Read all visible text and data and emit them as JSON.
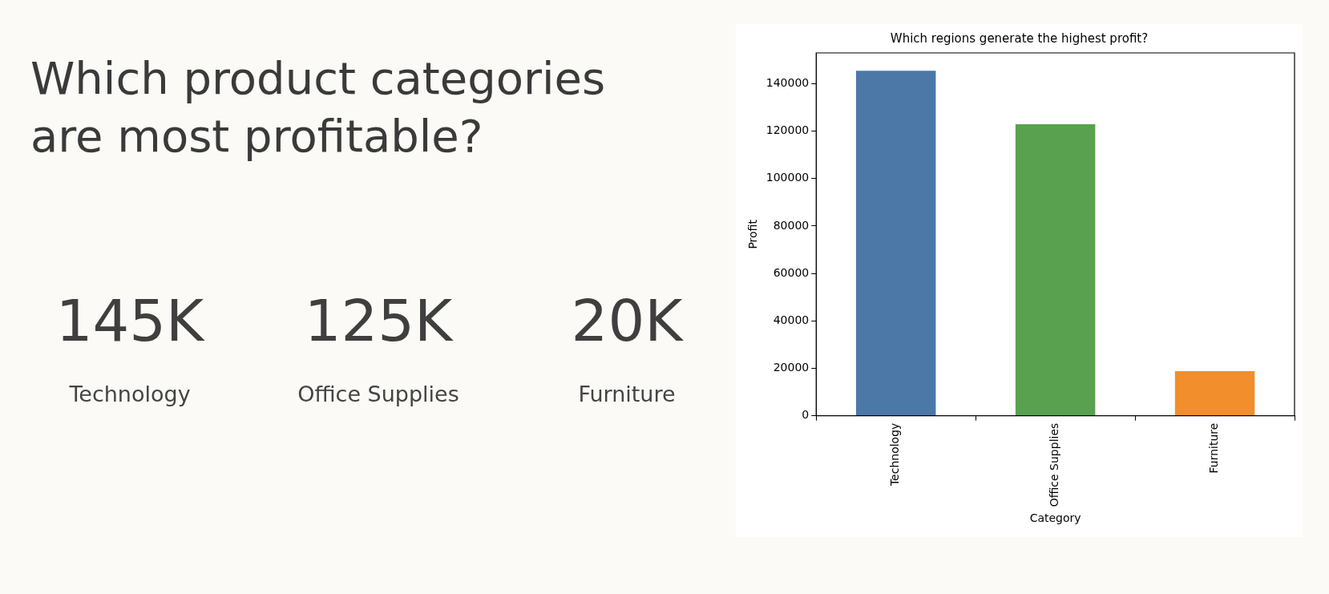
{
  "chart_data": [
    {
      "type": "other",
      "title": "Which product categories are most profitable?",
      "annotations": [
        "145K",
        "Technology",
        "125K",
        "Office Supplies",
        "20K",
        "Furniture"
      ]
    },
    {
      "type": "bar",
      "title": "Which regions generate the highest profit?",
      "xlabel": "Category",
      "ylabel": "Profit",
      "categories": [
        "Technology",
        "Office Supplies",
        "Furniture"
      ],
      "values": [
        145500,
        122900,
        18800
      ],
      "colors": [
        "#4c78a8",
        "#59a14f",
        "#f28e2b"
      ],
      "ylim": [
        0,
        153000
      ],
      "yticks": [
        0,
        20000,
        40000,
        60000,
        80000,
        100000,
        120000,
        140000
      ],
      "grid": false,
      "legend": false
    }
  ]
}
